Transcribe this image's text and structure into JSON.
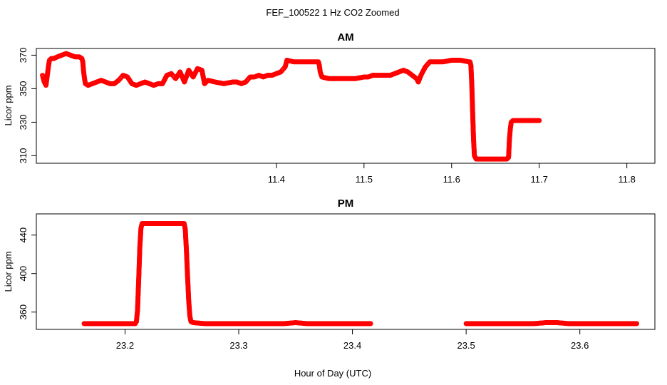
{
  "chart_data": {
    "title": "FEF_100522  1 Hz CO2 Zoomed",
    "xlabel": "Hour of Day (UTC)",
    "marker_color": "#ff0000",
    "panels": [
      {
        "type": "scatter",
        "title": "AM",
        "ylabel": "Licor ppm",
        "xlim": [
          11.126,
          11.832
        ],
        "ylim": [
          305.5,
          374
        ],
        "xticks": [
          "11.4",
          "11.5",
          "11.6",
          "11.7",
          "11.8"
        ],
        "xtick_values": [
          11.4,
          11.5,
          11.6,
          11.7,
          11.8
        ],
        "yticks": [
          "310",
          "330",
          "350",
          "370"
        ],
        "ytick_values": [
          310,
          330,
          350,
          370
        ],
        "series": [
          {
            "points": [
              [
                11.133,
                358
              ],
              [
                11.134,
                356
              ],
              [
                11.135,
                354
              ],
              [
                11.136,
                353
              ],
              [
                11.137,
                352
              ],
              [
                11.138,
                356
              ],
              [
                11.139,
                360
              ],
              [
                11.14,
                364
              ],
              [
                11.141,
                367
              ],
              [
                11.143,
                368
              ],
              [
                11.146,
                368
              ],
              [
                11.15,
                369
              ],
              [
                11.155,
                370
              ],
              [
                11.16,
                371
              ],
              [
                11.165,
                370
              ],
              [
                11.17,
                369
              ],
              [
                11.175,
                369
              ],
              [
                11.178,
                368
              ],
              [
                11.179,
                366
              ],
              [
                11.18,
                360
              ],
              [
                11.181,
                356
              ],
              [
                11.182,
                353
              ],
              [
                11.185,
                352
              ],
              [
                11.19,
                353
              ],
              [
                11.195,
                354
              ],
              [
                11.2,
                355
              ],
              [
                11.205,
                354
              ],
              [
                11.21,
                353
              ],
              [
                11.215,
                353
              ],
              [
                11.22,
                355
              ],
              [
                11.225,
                358
              ],
              [
                11.23,
                357
              ],
              [
                11.235,
                353
              ],
              [
                11.24,
                352
              ],
              [
                11.245,
                353
              ],
              [
                11.25,
                354
              ],
              [
                11.255,
                353
              ],
              [
                11.26,
                352
              ],
              [
                11.265,
                353
              ],
              [
                11.27,
                353
              ],
              [
                11.275,
                358
              ],
              [
                11.28,
                359
              ],
              [
                11.285,
                356
              ],
              [
                11.29,
                360
              ],
              [
                11.295,
                354
              ],
              [
                11.3,
                361
              ],
              [
                11.305,
                357
              ],
              [
                11.31,
                362
              ],
              [
                11.315,
                361
              ],
              [
                11.318,
                353
              ],
              [
                11.322,
                355
              ],
              [
                11.33,
                354
              ],
              [
                11.34,
                353
              ],
              [
                11.35,
                354
              ],
              [
                11.355,
                354
              ],
              [
                11.36,
                353
              ],
              [
                11.365,
                354
              ],
              [
                11.37,
                357
              ],
              [
                11.375,
                357
              ],
              [
                11.38,
                358
              ],
              [
                11.385,
                357
              ],
              [
                11.39,
                358
              ],
              [
                11.395,
                358
              ],
              [
                11.4,
                359
              ],
              [
                11.405,
                360
              ],
              [
                11.41,
                363
              ],
              [
                11.412,
                367
              ],
              [
                11.42,
                366
              ],
              [
                11.43,
                366
              ],
              [
                11.44,
                366
              ],
              [
                11.448,
                366
              ],
              [
                11.449,
                364
              ],
              [
                11.45,
                360
              ],
              [
                11.452,
                357
              ],
              [
                11.46,
                356
              ],
              [
                11.47,
                356
              ],
              [
                11.48,
                356
              ],
              [
                11.49,
                356
              ],
              [
                11.5,
                357
              ],
              [
                11.505,
                357
              ],
              [
                11.51,
                358
              ],
              [
                11.52,
                358
              ],
              [
                11.53,
                358
              ],
              [
                11.54,
                360
              ],
              [
                11.545,
                361
              ],
              [
                11.55,
                360
              ],
              [
                11.555,
                358
              ],
              [
                11.56,
                356
              ],
              [
                11.562,
                354
              ],
              [
                11.565,
                358
              ],
              [
                11.57,
                363
              ],
              [
                11.575,
                366
              ],
              [
                11.58,
                366
              ],
              [
                11.59,
                366
              ],
              [
                11.6,
                367
              ],
              [
                11.61,
                367
              ],
              [
                11.62,
                366
              ],
              [
                11.621,
                366
              ],
              [
                11.622,
                364
              ],
              [
                11.623,
                353
              ],
              [
                11.624,
                336
              ],
              [
                11.625,
                320
              ],
              [
                11.626,
                310
              ],
              [
                11.628,
                308
              ],
              [
                11.635,
                308
              ],
              [
                11.645,
                308
              ],
              [
                11.655,
                308
              ],
              [
                11.663,
                308
              ],
              [
                11.665,
                309
              ],
              [
                11.666,
                320
              ],
              [
                11.667,
                326
              ],
              [
                11.668,
                330
              ],
              [
                11.67,
                331
              ],
              [
                11.68,
                331
              ],
              [
                11.69,
                331
              ],
              [
                11.7,
                331
              ]
            ]
          }
        ]
      },
      {
        "type": "scatter",
        "title": "PM",
        "ylabel": "Licor ppm",
        "xlim": [
          23.122,
          23.666
        ],
        "ylim": [
          342,
          462
        ],
        "xticks": [
          "23.2",
          "23.3",
          "23.4",
          "23.5",
          "23.6"
        ],
        "xtick_values": [
          23.2,
          23.3,
          23.4,
          23.5,
          23.6
        ],
        "yticks": [
          "360",
          "400",
          "440"
        ],
        "ytick_values": [
          360,
          400,
          440
        ],
        "series": [
          {
            "points": [
              [
                23.164,
                348
              ],
              [
                23.17,
                348
              ],
              [
                23.18,
                348
              ],
              [
                23.19,
                348
              ],
              [
                23.2,
                348
              ],
              [
                23.205,
                348
              ],
              [
                23.209,
                348
              ],
              [
                23.21,
                350
              ],
              [
                23.211,
                362
              ],
              [
                23.212,
                393
              ],
              [
                23.213,
                427
              ],
              [
                23.214,
                447
              ],
              [
                23.215,
                452
              ],
              [
                23.22,
                452
              ],
              [
                23.23,
                452
              ],
              [
                23.24,
                452
              ],
              [
                23.25,
                452
              ],
              [
                23.252,
                452
              ],
              [
                23.253,
                446
              ],
              [
                23.254,
                424
              ],
              [
                23.255,
                397
              ],
              [
                23.256,
                372
              ],
              [
                23.257,
                356
              ],
              [
                23.258,
                350
              ],
              [
                23.26,
                349
              ],
              [
                23.27,
                348
              ],
              [
                23.28,
                348
              ],
              [
                23.29,
                348
              ],
              [
                23.3,
                348
              ],
              [
                23.31,
                348
              ],
              [
                23.32,
                348
              ],
              [
                23.33,
                348
              ],
              [
                23.34,
                348
              ],
              [
                23.35,
                349
              ],
              [
                23.36,
                348
              ],
              [
                23.37,
                348
              ],
              [
                23.38,
                348
              ],
              [
                23.39,
                348
              ],
              [
                23.4,
                348
              ],
              [
                23.41,
                348
              ],
              [
                23.416,
                348
              ],
              [
                23.5,
                348
              ],
              [
                23.51,
                348
              ],
              [
                23.52,
                348
              ],
              [
                23.53,
                348
              ],
              [
                23.54,
                348
              ],
              [
                23.55,
                348
              ],
              [
                23.56,
                348
              ],
              [
                23.57,
                349
              ],
              [
                23.58,
                349
              ],
              [
                23.59,
                348
              ],
              [
                23.6,
                348
              ],
              [
                23.61,
                348
              ],
              [
                23.62,
                348
              ],
              [
                23.63,
                348
              ],
              [
                23.64,
                348
              ],
              [
                23.65,
                348
              ]
            ]
          }
        ]
      }
    ]
  }
}
